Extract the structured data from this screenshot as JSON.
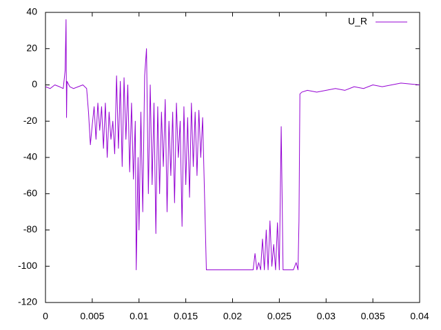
{
  "chart_data": {
    "type": "line",
    "x": [
      0,
      0.0005,
      0.001,
      0.0015,
      0.0019,
      0.002,
      0.0021,
      0.0022,
      0.00225,
      0.0023,
      0.0026,
      0.003,
      0.0035,
      0.004,
      0.0044,
      0.0046,
      0.0048,
      0.005,
      0.0052,
      0.0054,
      0.0056,
      0.0058,
      0.006,
      0.0062,
      0.0064,
      0.0066,
      0.0068,
      0.007,
      0.0072,
      0.0074,
      0.0076,
      0.0078,
      0.008,
      0.0082,
      0.0084,
      0.0086,
      0.0088,
      0.009,
      0.0092,
      0.0094,
      0.0096,
      0.0097,
      0.0099,
      0.01,
      0.0102,
      0.0104,
      0.0106,
      0.0108,
      0.011,
      0.0112,
      0.0114,
      0.0116,
      0.0118,
      0.012,
      0.0122,
      0.0124,
      0.0126,
      0.0128,
      0.013,
      0.0132,
      0.0134,
      0.0136,
      0.0138,
      0.014,
      0.0142,
      0.0144,
      0.0146,
      0.0148,
      0.015,
      0.0152,
      0.0154,
      0.0156,
      0.0158,
      0.016,
      0.0162,
      0.0164,
      0.0166,
      0.0168,
      0.017,
      0.0172,
      0.0175,
      0.019,
      0.021,
      0.0222,
      0.0224,
      0.0226,
      0.0228,
      0.023,
      0.0232,
      0.0234,
      0.0236,
      0.0238,
      0.024,
      0.0242,
      0.0244,
      0.0246,
      0.0248,
      0.025,
      0.0252,
      0.0254,
      0.0256,
      0.026,
      0.0265,
      0.0268,
      0.027,
      0.0271,
      0.0272,
      0.0274,
      0.028,
      0.029,
      0.03,
      0.031,
      0.032,
      0.033,
      0.034,
      0.035,
      0.036,
      0.037,
      0.038,
      0.04
    ],
    "series": [
      {
        "name": "U_R",
        "color": "#9400d3",
        "values": [
          -1,
          -2,
          0,
          -1,
          -2,
          3,
          8,
          36,
          -18,
          2,
          -1,
          -2,
          -1,
          0,
          -2,
          -15,
          -33,
          -22,
          -12,
          -30,
          -10,
          -25,
          -12,
          -35,
          -10,
          -40,
          -15,
          -30,
          -20,
          -38,
          5,
          -35,
          2,
          -45,
          4,
          -30,
          0,
          -48,
          -10,
          -52,
          -20,
          -102,
          -40,
          -80,
          -15,
          -70,
          5,
          20,
          -60,
          0,
          -55,
          -10,
          -82,
          -12,
          -60,
          -15,
          -45,
          -8,
          -70,
          -20,
          -50,
          -15,
          -65,
          -10,
          -40,
          -20,
          -78,
          -12,
          -55,
          -18,
          -62,
          -10,
          -45,
          -15,
          -50,
          -14,
          -40,
          -18,
          -60,
          -102,
          -102,
          -102,
          -102,
          -102,
          -93,
          -102,
          -98,
          -102,
          -85,
          -102,
          -80,
          -102,
          -75,
          -100,
          -88,
          -102,
          -76,
          -102,
          -23,
          -102,
          -102,
          -102,
          -102,
          -98,
          -102,
          -75,
          -5,
          -4,
          -3,
          -4,
          -3,
          -2,
          -3,
          -1,
          -2,
          0,
          -1,
          0,
          1,
          0
        ]
      }
    ],
    "xlim": [
      0,
      0.04
    ],
    "xticks": [
      0,
      0.005,
      0.01,
      0.015,
      0.02,
      0.025,
      0.03,
      0.035,
      0.04
    ],
    "ylim": [
      -120,
      40
    ],
    "yticks": [
      -120,
      -100,
      -80,
      -60,
      -40,
      -20,
      0,
      20,
      40
    ],
    "legend": "top-right"
  }
}
